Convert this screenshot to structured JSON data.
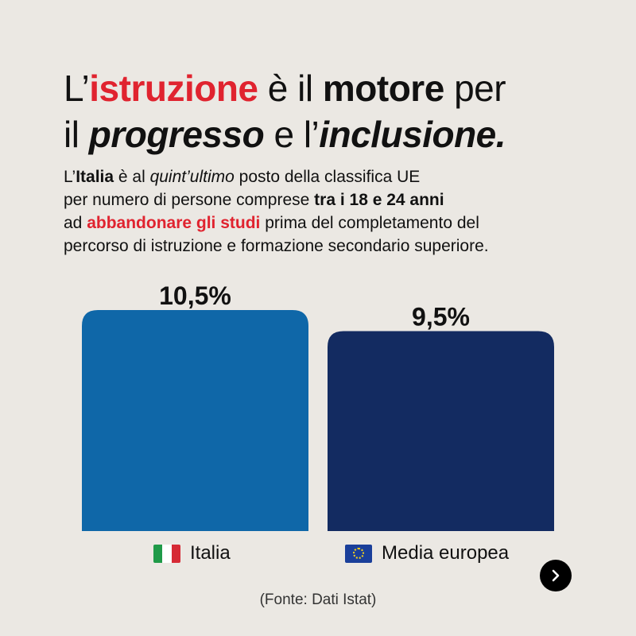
{
  "headline": {
    "l1a": "L’",
    "l1b": "istruzione",
    "l1c": " è il ",
    "l1d": "motore",
    "l1e": " per",
    "l2a": "il ",
    "l2b": "progresso",
    "l2c": " e l’",
    "l2d": "inclusione",
    "l2e": "."
  },
  "subtitle": {
    "s1": "L’",
    "s2": "Italia",
    "s3": " è al ",
    "s4": "quint’ultimo",
    "s5": " posto della classifica UE",
    "s6": "per numero di persone comprese ",
    "s7": "tra i 18 e 24 anni",
    "s8": "ad ",
    "s9": "abbandonare gli studi",
    "s10": " prima del completamento del",
    "s11": "percorso di istruzione e formazione secondario superiore."
  },
  "chart_data": {
    "type": "bar",
    "categories": [
      "Italia",
      "Media europea"
    ],
    "values": [
      10.5,
      9.5
    ],
    "value_labels": [
      "10,5%",
      "9,5%"
    ],
    "colors": [
      "#0f67a8",
      "#132b61"
    ],
    "title": "",
    "xlabel": "",
    "ylabel": "",
    "ylim": [
      0,
      10.5
    ]
  },
  "labels": {
    "italia": "Italia",
    "europa": "Media europea"
  },
  "icons": {
    "italia_flag": "italy-flag-icon",
    "eu_flag": "eu-flag-icon",
    "next": "chevron-right-icon"
  },
  "source": "(Fonte: Dati Istat)"
}
